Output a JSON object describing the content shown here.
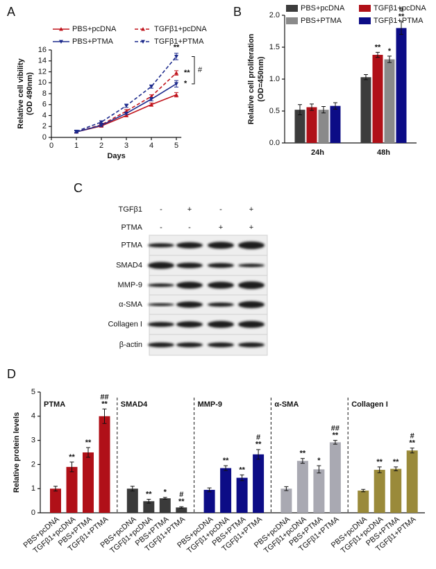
{
  "chart_data": [
    {
      "type": "line",
      "panel_label": "A",
      "x": [
        1,
        2,
        3,
        4,
        5
      ],
      "xlim": [
        0,
        5.2
      ],
      "xticks": [
        0,
        1,
        2,
        3,
        4,
        5
      ],
      "ylim": [
        0,
        16
      ],
      "yticks": [
        0,
        2,
        4,
        6,
        8,
        10,
        12,
        14,
        16
      ],
      "xlabel": "Days",
      "ylabel": [
        "Relative cell vibility",
        "(OD 490nm)"
      ],
      "bracket_label": "#",
      "series": [
        {
          "name": "PBS+pcDNA",
          "color": "#c0141c",
          "line_style": "solid",
          "marker": "triangle-up",
          "values": [
            1.0,
            2.1,
            4.0,
            6.0,
            7.8
          ],
          "errors": [
            0.2,
            0.2,
            0.2,
            0.3,
            0.4
          ],
          "annotations": [
            null,
            null,
            null,
            null,
            null
          ]
        },
        {
          "name": "TGFβ1+pcDNA",
          "color": "#c0141c",
          "line_style": "dashed",
          "marker": "triangle-up",
          "values": [
            1.0,
            2.3,
            4.8,
            7.5,
            11.8
          ],
          "errors": [
            0.2,
            0.2,
            0.3,
            0.3,
            0.4
          ],
          "annotations": [
            null,
            null,
            null,
            null,
            [
              "**"
            ]
          ]
        },
        {
          "name": "PBS+PTMA",
          "color": "#1c2a8c",
          "line_style": "solid",
          "marker": "triangle-down",
          "values": [
            1.0,
            2.2,
            4.4,
            7.0,
            9.8
          ],
          "errors": [
            0.2,
            0.2,
            0.2,
            0.3,
            0.6
          ],
          "annotations": [
            null,
            null,
            null,
            null,
            [
              "*"
            ]
          ]
        },
        {
          "name": "TGFβ1+PTMA",
          "color": "#1c2a8c",
          "line_style": "dashed",
          "marker": "triangle-down",
          "values": [
            1.1,
            2.8,
            5.8,
            9.3,
            14.8
          ],
          "errors": [
            0.2,
            0.2,
            0.3,
            0.3,
            0.6
          ],
          "annotations": [
            null,
            null,
            null,
            null,
            [
              "**"
            ]
          ]
        }
      ]
    },
    {
      "type": "bar",
      "panel_label": "B",
      "categories": [
        "24h",
        "48h"
      ],
      "ylim": [
        0,
        2
      ],
      "yticks": [
        {
          "value": 0,
          "label": "0.0"
        },
        0.5,
        {
          "value": 1,
          "label": "1.0"
        },
        1.5,
        {
          "value": 2,
          "label": "2.0"
        }
      ],
      "ylabel": [
        "Relative cell proliferation",
        "(OD=450nm)"
      ],
      "series": [
        {
          "name": "PBS+pcDNA",
          "color": "#3c3c3c",
          "values": [
            0.52,
            1.03
          ],
          "errors": [
            0.08,
            0.04
          ],
          "annotations": [
            null,
            null
          ]
        },
        {
          "name": "TGFβ1+pcDNA",
          "color": "#b01018",
          "values": [
            0.56,
            1.38
          ],
          "errors": [
            0.05,
            0.04
          ],
          "annotations": [
            null,
            [
              "**"
            ]
          ]
        },
        {
          "name": "PBS+PTMA",
          "color": "#8a8a8a",
          "values": [
            0.52,
            1.31
          ],
          "errors": [
            0.05,
            0.05
          ],
          "annotations": [
            null,
            [
              "*"
            ]
          ]
        },
        {
          "name": "TGFβ1+PTMA",
          "color": "#0c0c86",
          "values": [
            0.58,
            1.8
          ],
          "errors": [
            0.05,
            0.1
          ],
          "annotations": [
            null,
            [
              "#",
              "**"
            ]
          ]
        }
      ]
    },
    {
      "type": "facets",
      "panel_label": "D",
      "ylabel": "Relative protein levels",
      "ylim": [
        0,
        5
      ],
      "yticks": [
        0,
        1,
        2,
        3,
        4,
        5
      ],
      "categories": [
        "PBS+pcDNA",
        "TGFβ1+pcDNA",
        "PBS+PTMA",
        "TGFβ1+PTMA"
      ],
      "panels": [
        {
          "title": "PTMA",
          "color": "#b01018",
          "values": [
            1.0,
            1.9,
            2.5,
            4.0
          ],
          "errors": [
            0.1,
            0.2,
            0.2,
            0.3
          ],
          "annotations": [
            null,
            [
              "**"
            ],
            [
              "**"
            ],
            [
              "##",
              "**"
            ]
          ]
        },
        {
          "title": "SMAD4",
          "color": "#3a3a3a",
          "values": [
            1.0,
            0.48,
            0.6,
            0.22
          ],
          "errors": [
            0.1,
            0.08,
            0.04,
            0.03
          ],
          "annotations": [
            null,
            [
              "**"
            ],
            [
              "*"
            ],
            [
              "#",
              "**"
            ]
          ]
        },
        {
          "title": "MMP-9",
          "color": "#0c0c86",
          "values": [
            0.95,
            1.85,
            1.45,
            2.42
          ],
          "errors": [
            0.08,
            0.1,
            0.12,
            0.2
          ],
          "annotations": [
            null,
            [
              "**"
            ],
            [
              "**"
            ],
            [
              "#",
              "**"
            ]
          ]
        },
        {
          "title": "α-SMA",
          "color": "#a9a9b2",
          "values": [
            1.0,
            2.15,
            1.8,
            2.92
          ],
          "errors": [
            0.08,
            0.1,
            0.15,
            0.08
          ],
          "annotations": [
            null,
            [
              "**"
            ],
            [
              "*"
            ],
            [
              "##",
              "**"
            ]
          ]
        },
        {
          "title": "Collagen I",
          "color": "#9a8a3a",
          "values": [
            0.92,
            1.78,
            1.82,
            2.58
          ],
          "errors": [
            0.05,
            0.12,
            0.08,
            0.1
          ],
          "annotations": [
            null,
            [
              "**"
            ],
            [
              "**"
            ],
            [
              "#",
              "**"
            ]
          ]
        }
      ]
    }
  ],
  "blot": {
    "panel_label": "C",
    "conditions": [
      {
        "label": "TGFβ1",
        "marks": [
          "-",
          "+",
          "-",
          "+"
        ]
      },
      {
        "label": "PTMA",
        "marks": [
          "-",
          "-",
          "+",
          "+"
        ]
      }
    ],
    "proteins": [
      "PTMA",
      "SMAD4",
      "MMP-9",
      "α-SMA",
      "Collagen I",
      "β-actin"
    ]
  }
}
